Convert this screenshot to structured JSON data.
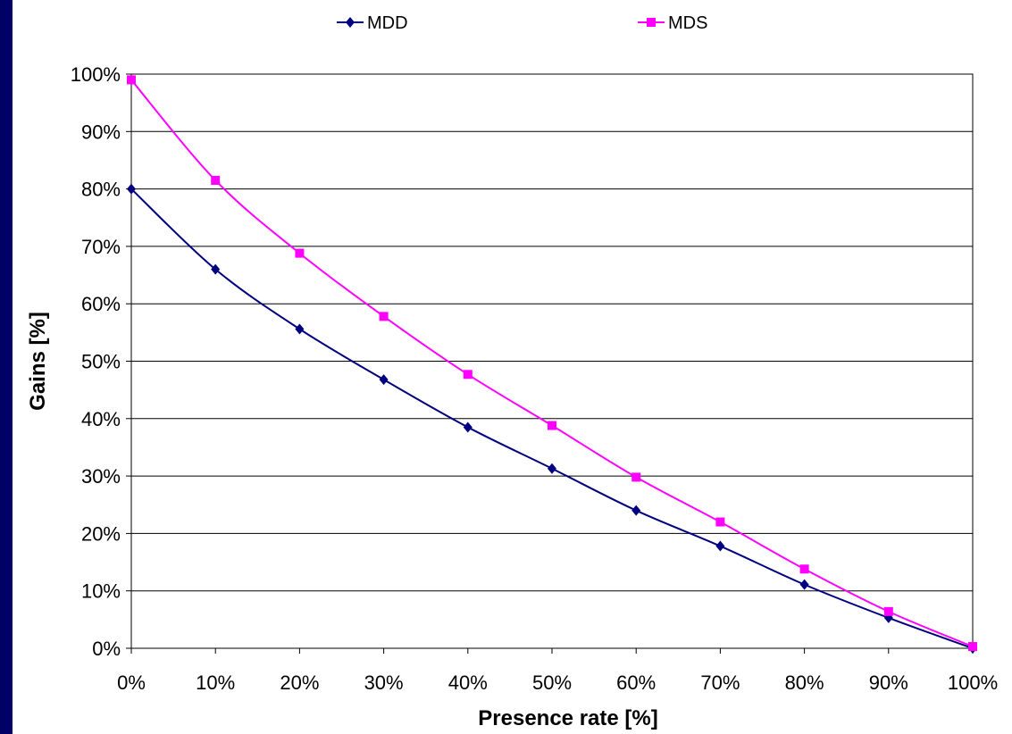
{
  "chart_data": {
    "type": "line",
    "title": "",
    "xlabel": "Presence rate [%]",
    "ylabel": "Gains [%]",
    "x": [
      0,
      10,
      20,
      30,
      40,
      50,
      60,
      70,
      80,
      90,
      100
    ],
    "x_tick_labels": [
      "0%",
      "10%",
      "20%",
      "30%",
      "40%",
      "50%",
      "60%",
      "70%",
      "80%",
      "90%",
      "100%"
    ],
    "y_tick_labels": [
      "0%",
      "10%",
      "20%",
      "30%",
      "40%",
      "50%",
      "60%",
      "70%",
      "80%",
      "90%",
      "100%"
    ],
    "xlim": [
      0,
      100
    ],
    "ylim": [
      0,
      100
    ],
    "grid": "horizontal",
    "legend_position": "top",
    "series": [
      {
        "name": "MDD",
        "color": "#000080",
        "marker": "diamond",
        "values": [
          80,
          66,
          55.6,
          46.8,
          38.5,
          31.3,
          24,
          17.8,
          11.1,
          5.3,
          0
        ]
      },
      {
        "name": "MDS",
        "color": "#ff00ff",
        "marker": "square",
        "values": [
          99,
          81.5,
          68.8,
          57.8,
          47.7,
          38.8,
          29.8,
          22,
          13.8,
          6.4,
          0.3
        ]
      }
    ]
  }
}
